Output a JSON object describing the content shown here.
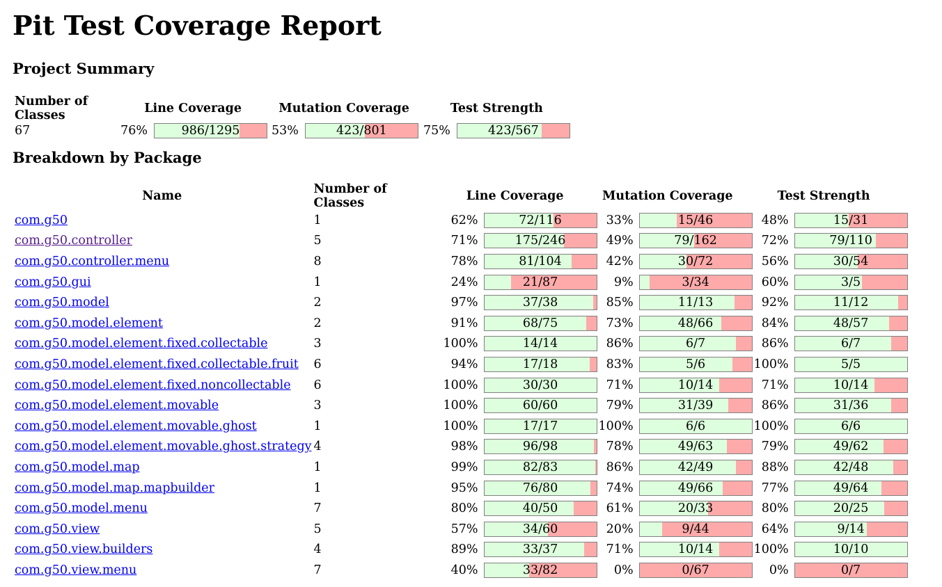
{
  "title": "Pit Test Coverage Report",
  "summary": {
    "heading": "Project Summary",
    "headers": {
      "classes": "Number of Classes",
      "line": "Line Coverage",
      "mutation": "Mutation Coverage",
      "strength": "Test Strength"
    },
    "classes": "67",
    "line": {
      "pct": "76%",
      "text": "986/1295",
      "fraction": 0.76
    },
    "mutation": {
      "pct": "53%",
      "text": "423/801",
      "fraction": 0.53
    },
    "strength": {
      "pct": "75%",
      "text": "423/567",
      "fraction": 0.75
    }
  },
  "breakdown": {
    "heading": "Breakdown by Package",
    "headers": {
      "name": "Name",
      "classes": "Number of Classes",
      "line": "Line Coverage",
      "mutation": "Mutation Coverage",
      "strength": "Test Strength"
    },
    "colors": {
      "covered": "#ddffdd",
      "uncovered": "#ffaaaa",
      "link": "#0000ee",
      "visited_link": "#551a8b"
    },
    "rows": [
      {
        "name": "com.g50",
        "classes": "1",
        "line_pct": "62%",
        "line_text": "72/116",
        "line_frac": 0.62,
        "mut_pct": "33%",
        "mut_text": "15/46",
        "mut_frac": 0.33,
        "str_pct": "48%",
        "str_text": "15/31",
        "str_frac": 0.48,
        "visited": false
      },
      {
        "name": "com.g50.controller",
        "classes": "5",
        "line_pct": "71%",
        "line_text": "175/246",
        "line_frac": 0.71,
        "mut_pct": "49%",
        "mut_text": "79/162",
        "mut_frac": 0.49,
        "str_pct": "72%",
        "str_text": "79/110",
        "str_frac": 0.72,
        "visited": true
      },
      {
        "name": "com.g50.controller.menu",
        "classes": "8",
        "line_pct": "78%",
        "line_text": "81/104",
        "line_frac": 0.78,
        "mut_pct": "42%",
        "mut_text": "30/72",
        "mut_frac": 0.42,
        "str_pct": "56%",
        "str_text": "30/54",
        "str_frac": 0.56,
        "visited": false
      },
      {
        "name": "com.g50.gui",
        "classes": "1",
        "line_pct": "24%",
        "line_text": "21/87",
        "line_frac": 0.24,
        "mut_pct": "9%",
        "mut_text": "3/34",
        "mut_frac": 0.09,
        "str_pct": "60%",
        "str_text": "3/5",
        "str_frac": 0.6,
        "visited": false
      },
      {
        "name": "com.g50.model",
        "classes": "2",
        "line_pct": "97%",
        "line_text": "37/38",
        "line_frac": 0.97,
        "mut_pct": "85%",
        "mut_text": "11/13",
        "mut_frac": 0.85,
        "str_pct": "92%",
        "str_text": "11/12",
        "str_frac": 0.92,
        "visited": false
      },
      {
        "name": "com.g50.model.element",
        "classes": "2",
        "line_pct": "91%",
        "line_text": "68/75",
        "line_frac": 0.91,
        "mut_pct": "73%",
        "mut_text": "48/66",
        "mut_frac": 0.73,
        "str_pct": "84%",
        "str_text": "48/57",
        "str_frac": 0.84,
        "visited": false
      },
      {
        "name": "com.g50.model.element.fixed.collectable",
        "classes": "3",
        "line_pct": "100%",
        "line_text": "14/14",
        "line_frac": 1.0,
        "mut_pct": "86%",
        "mut_text": "6/7",
        "mut_frac": 0.86,
        "str_pct": "86%",
        "str_text": "6/7",
        "str_frac": 0.86,
        "visited": false
      },
      {
        "name": "com.g50.model.element.fixed.collectable.fruit",
        "classes": "6",
        "line_pct": "94%",
        "line_text": "17/18",
        "line_frac": 0.94,
        "mut_pct": "83%",
        "mut_text": "5/6",
        "mut_frac": 0.83,
        "str_pct": "100%",
        "str_text": "5/5",
        "str_frac": 1.0,
        "visited": false
      },
      {
        "name": "com.g50.model.element.fixed.noncollectable",
        "classes": "6",
        "line_pct": "100%",
        "line_text": "30/30",
        "line_frac": 1.0,
        "mut_pct": "71%",
        "mut_text": "10/14",
        "mut_frac": 0.71,
        "str_pct": "71%",
        "str_text": "10/14",
        "str_frac": 0.71,
        "visited": false
      },
      {
        "name": "com.g50.model.element.movable",
        "classes": "3",
        "line_pct": "100%",
        "line_text": "60/60",
        "line_frac": 1.0,
        "mut_pct": "79%",
        "mut_text": "31/39",
        "mut_frac": 0.79,
        "str_pct": "86%",
        "str_text": "31/36",
        "str_frac": 0.86,
        "visited": false
      },
      {
        "name": "com.g50.model.element.movable.ghost",
        "classes": "1",
        "line_pct": "100%",
        "line_text": "17/17",
        "line_frac": 1.0,
        "mut_pct": "100%",
        "mut_text": "6/6",
        "mut_frac": 1.0,
        "str_pct": "100%",
        "str_text": "6/6",
        "str_frac": 1.0,
        "visited": false
      },
      {
        "name": "com.g50.model.element.movable.ghost.strategy",
        "classes": "4",
        "line_pct": "98%",
        "line_text": "96/98",
        "line_frac": 0.98,
        "mut_pct": "78%",
        "mut_text": "49/63",
        "mut_frac": 0.78,
        "str_pct": "79%",
        "str_text": "49/62",
        "str_frac": 0.79,
        "visited": false
      },
      {
        "name": "com.g50.model.map",
        "classes": "1",
        "line_pct": "99%",
        "line_text": "82/83",
        "line_frac": 0.99,
        "mut_pct": "86%",
        "mut_text": "42/49",
        "mut_frac": 0.86,
        "str_pct": "88%",
        "str_text": "42/48",
        "str_frac": 0.88,
        "visited": false
      },
      {
        "name": "com.g50.model.map.mapbuilder",
        "classes": "1",
        "line_pct": "95%",
        "line_text": "76/80",
        "line_frac": 0.95,
        "mut_pct": "74%",
        "mut_text": "49/66",
        "mut_frac": 0.74,
        "str_pct": "77%",
        "str_text": "49/64",
        "str_frac": 0.77,
        "visited": false
      },
      {
        "name": "com.g50.model.menu",
        "classes": "7",
        "line_pct": "80%",
        "line_text": "40/50",
        "line_frac": 0.8,
        "mut_pct": "61%",
        "mut_text": "20/33",
        "mut_frac": 0.61,
        "str_pct": "80%",
        "str_text": "20/25",
        "str_frac": 0.8,
        "visited": false
      },
      {
        "name": "com.g50.view",
        "classes": "5",
        "line_pct": "57%",
        "line_text": "34/60",
        "line_frac": 0.57,
        "mut_pct": "20%",
        "mut_text": "9/44",
        "mut_frac": 0.2,
        "str_pct": "64%",
        "str_text": "9/14",
        "str_frac": 0.64,
        "visited": false
      },
      {
        "name": "com.g50.view.builders",
        "classes": "4",
        "line_pct": "89%",
        "line_text": "33/37",
        "line_frac": 0.89,
        "mut_pct": "71%",
        "mut_text": "10/14",
        "mut_frac": 0.71,
        "str_pct": "100%",
        "str_text": "10/10",
        "str_frac": 1.0,
        "visited": false
      },
      {
        "name": "com.g50.view.menu",
        "classes": "7",
        "line_pct": "40%",
        "line_text": "33/82",
        "line_frac": 0.4,
        "mut_pct": "0%",
        "mut_text": "0/67",
        "mut_frac": 0.0,
        "str_pct": "0%",
        "str_text": "0/7",
        "str_frac": 0.0,
        "visited": false
      }
    ]
  }
}
